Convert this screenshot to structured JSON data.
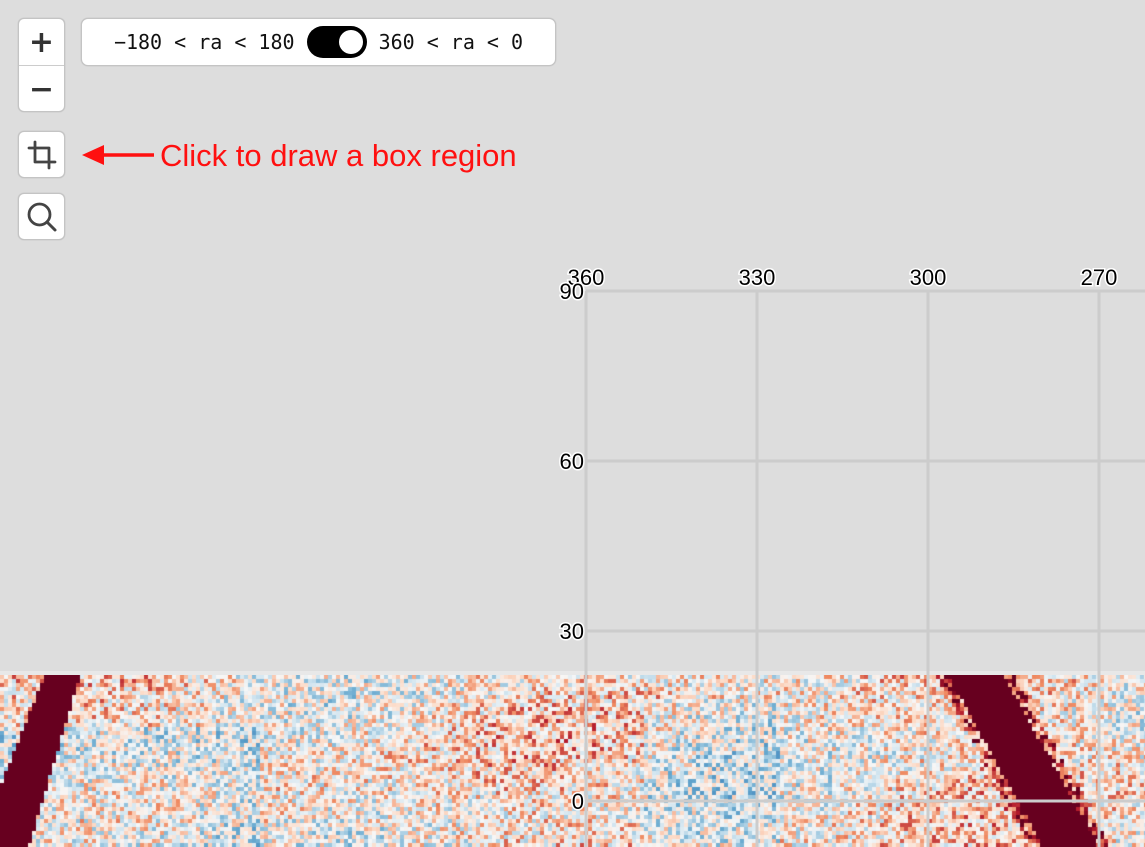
{
  "controls": {
    "zoom_in_label": "+",
    "zoom_out_label": "−",
    "ra_toggle": {
      "left_label": "−180 < ra < 180",
      "right_label": "360 < ra < 0",
      "state": "right"
    }
  },
  "annotation": {
    "text": "Click to draw a box region",
    "color": "#ff1010"
  },
  "icons": {
    "box": "crop-icon",
    "search": "magnifier-icon"
  },
  "grid": {
    "ra_ticks": [
      "360",
      "330",
      "300",
      "270"
    ],
    "dec_ticks": [
      "90",
      "60",
      "30",
      "0"
    ]
  },
  "colors": {
    "background": "#dddddd",
    "grid": "#cccccc",
    "map_high": "#67001f",
    "map_low": "#2166ac"
  }
}
